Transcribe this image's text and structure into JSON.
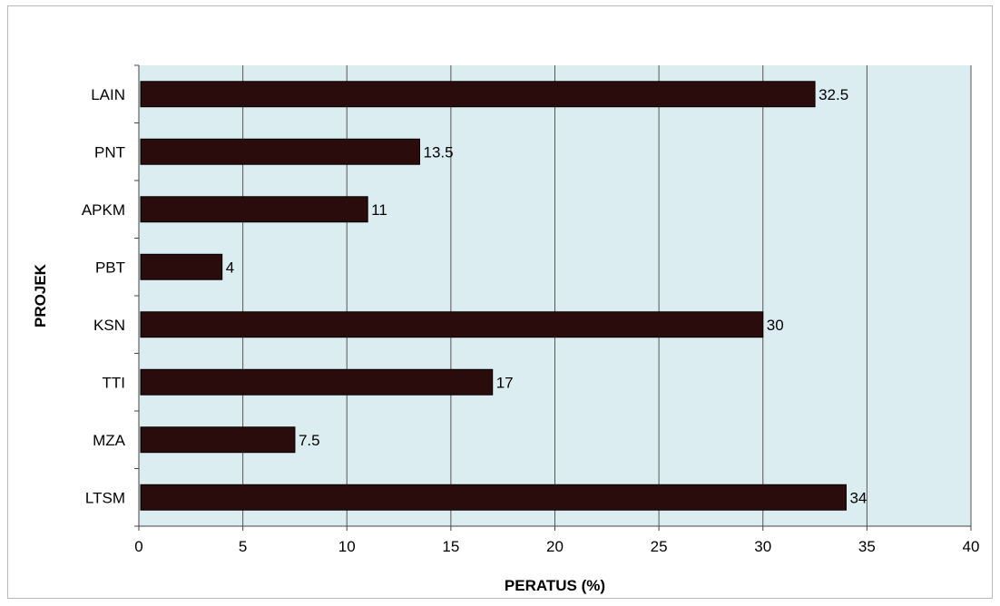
{
  "chart_data": {
    "type": "bar",
    "orientation": "horizontal",
    "title": "",
    "xlabel": "PERATUS (%)",
    "ylabel": "PROJEK",
    "categories": [
      "LAIN",
      "PNT",
      "APKM",
      "PBT",
      "KSN",
      "TTI",
      "MZA",
      "LTSM"
    ],
    "values": [
      32.5,
      13.5,
      11,
      4,
      30,
      17,
      7.5,
      34
    ],
    "value_labels": [
      "32.5",
      "13.5",
      "11",
      "4",
      "30",
      "17",
      "7.5",
      "34"
    ],
    "xlim": [
      0,
      40
    ],
    "xticks": [
      "0",
      "5",
      "10",
      "15",
      "20",
      "25",
      "30",
      "35",
      "40"
    ],
    "grid": true,
    "legend": "none",
    "colors": {
      "bar": "#2a0c0c",
      "plot_background": "#dcedf1",
      "grid": "#555555"
    }
  }
}
